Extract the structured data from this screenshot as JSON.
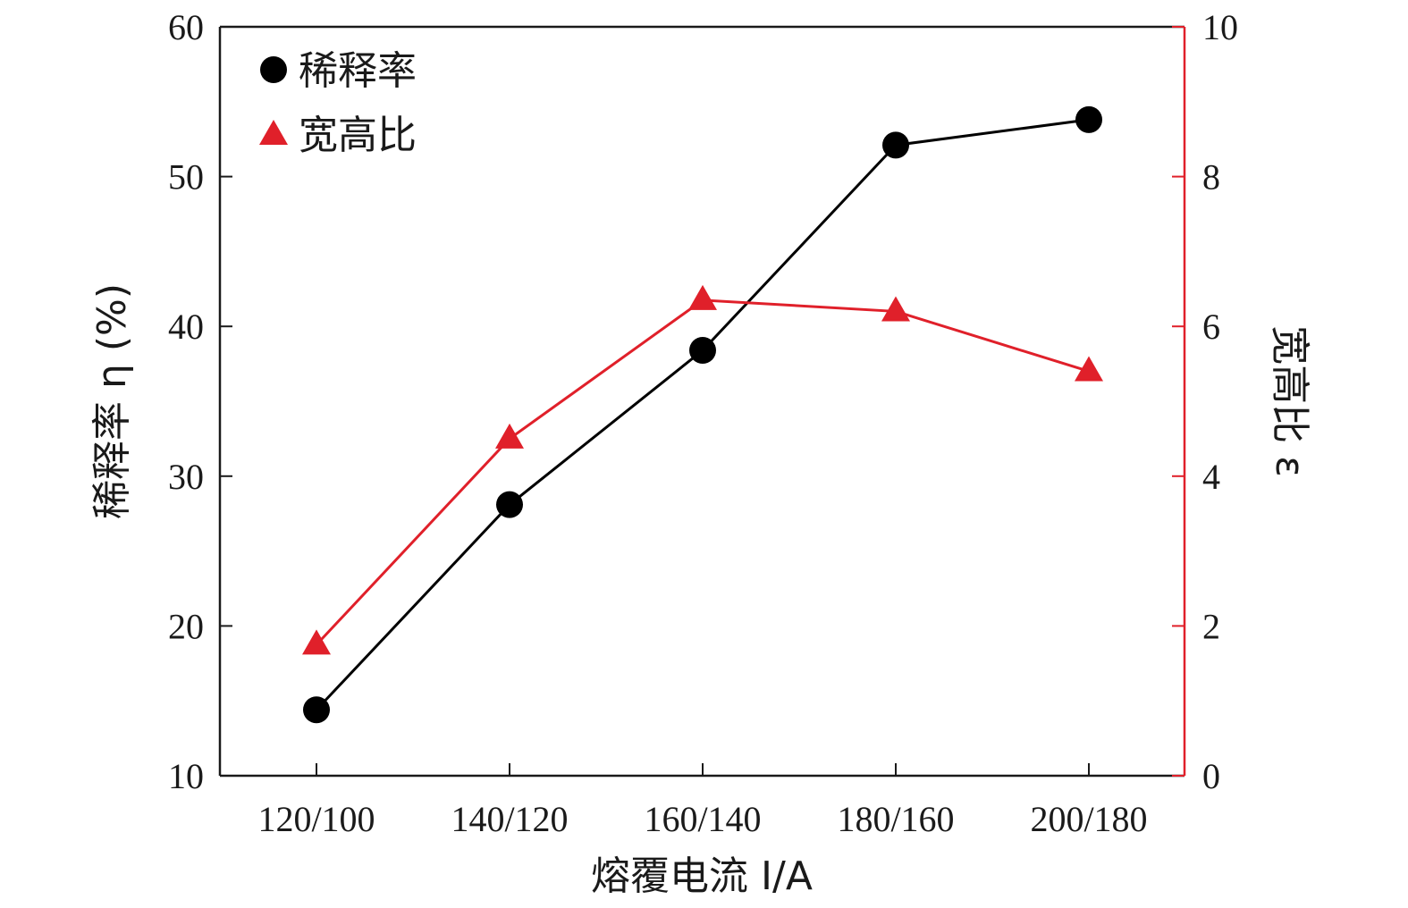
{
  "chart_data": {
    "type": "line",
    "categories": [
      "120/100",
      "140/120",
      "160/140",
      "180/160",
      "200/180"
    ],
    "xlabel": "熔覆电流 I/A",
    "ylabel_left": "稀释率 η (%)",
    "ylabel_right": "宽高比 ε",
    "ylim_left": [
      10,
      60
    ],
    "ylim_right": [
      0,
      10
    ],
    "yticks_left": [
      10,
      20,
      30,
      40,
      50,
      60
    ],
    "yticks_right": [
      0,
      2,
      4,
      6,
      8,
      10
    ],
    "grid": false,
    "legend_position": "top-left",
    "series": [
      {
        "name": "稀释率",
        "axis": "left",
        "marker": "circle",
        "color": "#000000",
        "values": [
          14.4,
          28.1,
          38.4,
          52.1,
          53.8
        ]
      },
      {
        "name": "宽高比",
        "axis": "right",
        "marker": "triangle",
        "color": "#e0202a",
        "values": [
          1.75,
          4.5,
          6.35,
          6.2,
          5.4
        ]
      }
    ]
  }
}
